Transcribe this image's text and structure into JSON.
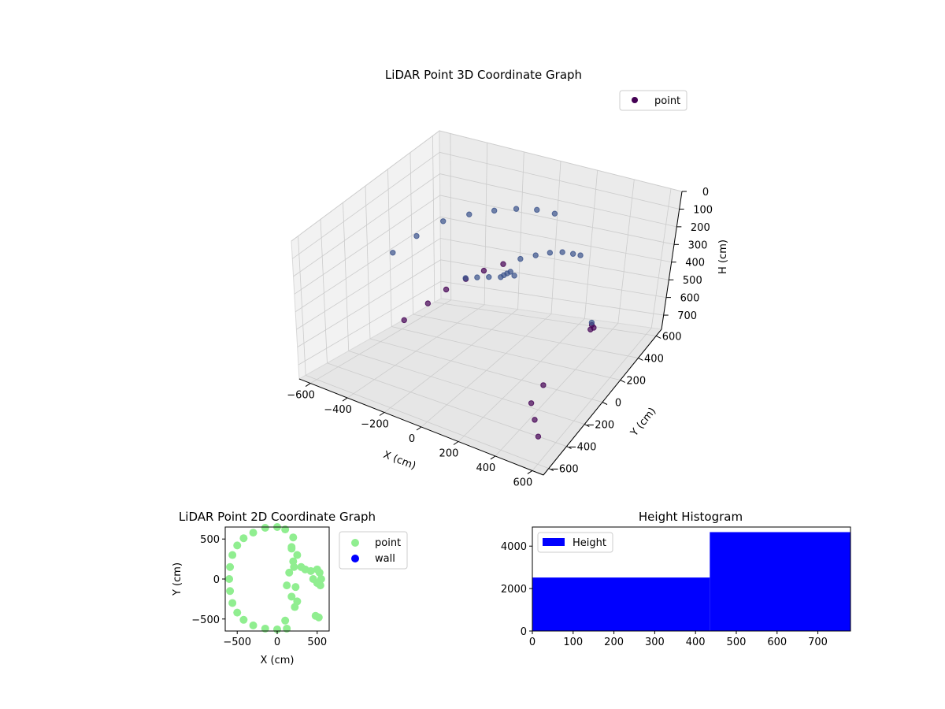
{
  "figure_title_3d": "LiDAR Point 3D Coordinate Graph",
  "chart_data": [
    {
      "type": "scatter",
      "title": "LiDAR Point 3D Coordinate Graph",
      "dimensions": "3d",
      "xlabel": "X (cm)",
      "ylabel": "Y (cm)",
      "zlabel": "H (cm)",
      "xticks": [
        -600,
        -400,
        -200,
        0,
        200,
        400,
        600
      ],
      "yticks": [
        -600,
        -400,
        -200,
        0,
        200,
        400,
        600
      ],
      "zticks": [
        0,
        100,
        200,
        300,
        400,
        500,
        600,
        700
      ],
      "xlim": [
        -660,
        660
      ],
      "ylim": [
        -660,
        660
      ],
      "zlim": [
        780,
        0
      ],
      "z_axis_inverted": true,
      "legend": [
        {
          "label": "point",
          "color": "#440154"
        }
      ],
      "legend_position": "top-right",
      "grid": true,
      "colormap": [
        "#440154",
        "#3b528b"
      ],
      "series": [
        {
          "name": "point",
          "description_shape": "curved wall arc of points",
          "points_3d": [
            [
              -550,
              150,
              700
            ],
            [
              -500,
              300,
              650
            ],
            [
              -450,
              400,
              600
            ],
            [
              -380,
              480,
              560
            ],
            [
              -300,
              530,
              520
            ],
            [
              -200,
              560,
              480
            ],
            [
              -100,
              570,
              440
            ],
            [
              0,
              560,
              400
            ],
            [
              100,
              540,
              360
            ],
            [
              200,
              500,
              320
            ],
            [
              300,
              440,
              280
            ],
            [
              380,
              380,
              240
            ],
            [
              -550,
              100,
              300
            ],
            [
              -500,
              250,
              250
            ],
            [
              -420,
              380,
              200
            ],
            [
              -320,
              470,
              180
            ],
            [
              -200,
              520,
              160
            ],
            [
              -80,
              540,
              140
            ],
            [
              50,
              530,
              120
            ],
            [
              180,
              490,
              100
            ],
            [
              -200,
              200,
              400
            ],
            [
              -100,
              150,
              350
            ],
            [
              0,
              100,
              300
            ],
            [
              100,
              50,
              250
            ],
            [
              150,
              0,
              200
            ],
            [
              200,
              -50,
              150
            ],
            [
              250,
              -100,
              100
            ],
            [
              300,
              -150,
              80
            ],
            [
              450,
              300,
              600
            ],
            [
              500,
              250,
              550
            ],
            [
              520,
              200,
              500
            ],
            [
              550,
              150,
              450
            ],
            [
              480,
              -400,
              600
            ],
            [
              520,
              -450,
              650
            ],
            [
              560,
              -500,
              700
            ],
            [
              500,
              -300,
              550
            ]
          ]
        }
      ]
    },
    {
      "type": "scatter",
      "title": "LiDAR Point 2D Coordinate Graph",
      "xlabel": "X (cm)",
      "ylabel": "Y (cm)",
      "xticks": [
        -500,
        0,
        500
      ],
      "yticks": [
        -500,
        0,
        500
      ],
      "xlim": [
        -650,
        650
      ],
      "ylim": [
        -650,
        650
      ],
      "legend": [
        {
          "label": "point",
          "color": "#90ee90"
        },
        {
          "label": "wall",
          "color": "#0000ff"
        }
      ],
      "legend_position": "outside-right",
      "series": [
        {
          "name": "point",
          "color": "#90ee90",
          "points": [
            [
              -600,
              0
            ],
            [
              -590,
              150
            ],
            [
              -560,
              300
            ],
            [
              -500,
              420
            ],
            [
              -420,
              510
            ],
            [
              -300,
              580
            ],
            [
              -150,
              640
            ],
            [
              0,
              650
            ],
            [
              -590,
              -150
            ],
            [
              -560,
              -300
            ],
            [
              -500,
              -420
            ],
            [
              -420,
              -510
            ],
            [
              -300,
              -580
            ],
            [
              -150,
              -620
            ],
            [
              0,
              -630
            ],
            [
              100,
              620
            ],
            [
              200,
              520
            ],
            [
              180,
              380
            ],
            [
              200,
              220
            ],
            [
              150,
              80
            ],
            [
              120,
              -80
            ],
            [
              180,
              -220
            ],
            [
              220,
              -350
            ],
            [
              100,
              -520
            ],
            [
              120,
              -620
            ],
            [
              180,
              400
            ],
            [
              250,
              300
            ],
            [
              210,
              150
            ],
            [
              230,
              -100
            ],
            [
              250,
              -280
            ],
            [
              300,
              150
            ],
            [
              350,
              120
            ],
            [
              420,
              100
            ],
            [
              450,
              0
            ],
            [
              500,
              120
            ],
            [
              530,
              80
            ],
            [
              550,
              0
            ],
            [
              540,
              -80
            ],
            [
              500,
              -50
            ],
            [
              480,
              -460
            ],
            [
              520,
              -480
            ]
          ]
        },
        {
          "name": "wall",
          "color": "#0000ff",
          "points": []
        }
      ]
    },
    {
      "type": "bar",
      "title": "Height Histogram",
      "legend": [
        {
          "label": "Height",
          "color": "#0000ff"
        }
      ],
      "legend_position": "top-left",
      "xticks": [
        0,
        100,
        200,
        300,
        400,
        500,
        600,
        700
      ],
      "yticks": [
        0,
        2000,
        4000
      ],
      "xlim": [
        0,
        780
      ],
      "ylim": [
        0,
        4900
      ],
      "bins": [
        {
          "start": 0,
          "end": 435,
          "value": 2520
        },
        {
          "start": 435,
          "end": 780,
          "value": 4660
        }
      ]
    }
  ]
}
